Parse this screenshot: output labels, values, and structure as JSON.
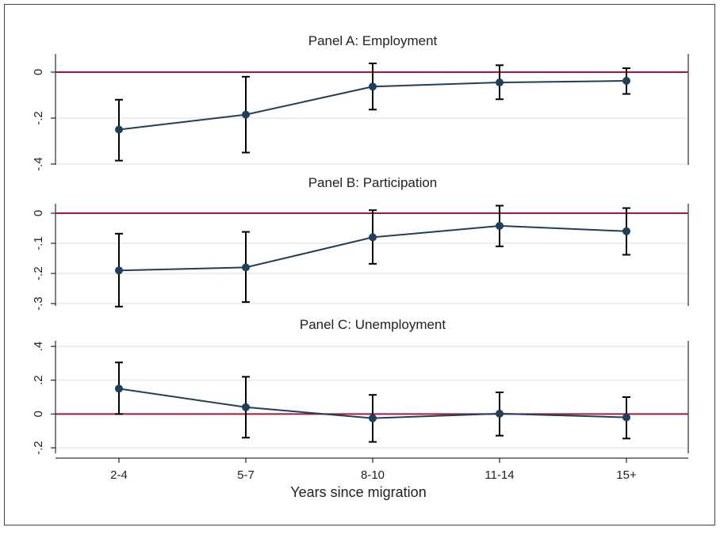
{
  "chart_data": {
    "type": "line",
    "xlabel": "Years since migration",
    "categories": [
      "2-4",
      "5-7",
      "8-10",
      "11-14",
      "15+"
    ],
    "reference_line": 0,
    "colors": {
      "series": "#1f3f5a",
      "errorbar": "#000000",
      "reference": "#a01c3c",
      "grid": "#e3ebea"
    },
    "panels": [
      {
        "title": "Panel A: Employment",
        "ylim": [
          -0.4,
          0.05
        ],
        "yticks": [
          0,
          -0.2,
          -0.4
        ],
        "ytick_labels": [
          "0",
          "-.2",
          "-.4"
        ],
        "values": [
          -0.25,
          -0.185,
          -0.063,
          -0.045,
          -0.038
        ],
        "ci_low": [
          -0.385,
          -0.35,
          -0.163,
          -0.118,
          -0.095
        ],
        "ci_high": [
          -0.12,
          -0.02,
          0.038,
          0.03,
          0.017
        ]
      },
      {
        "title": "Panel B: Participation",
        "ylim": [
          -0.31,
          0.02
        ],
        "yticks": [
          0,
          -0.1,
          -0.2,
          -0.3
        ],
        "ytick_labels": [
          "0",
          "-.1",
          "-.2",
          "-.3"
        ],
        "values": [
          -0.19,
          -0.18,
          -0.08,
          -0.042,
          -0.06
        ],
        "ci_low": [
          -0.31,
          -0.295,
          -0.168,
          -0.11,
          -0.138
        ],
        "ci_high": [
          -0.068,
          -0.062,
          0.01,
          0.025,
          0.017
        ]
      },
      {
        "title": "Panel C: Unemployment",
        "ylim": [
          -0.25,
          0.42
        ],
        "yticks": [
          0.4,
          0.2,
          0,
          -0.2
        ],
        "ytick_labels": [
          ".4",
          ".2",
          "0",
          "-.2"
        ],
        "values": [
          0.15,
          0.04,
          -0.025,
          0.002,
          -0.02
        ],
        "ci_low": [
          0,
          -0.14,
          -0.165,
          -0.128,
          -0.145
        ],
        "ci_high": [
          0.305,
          0.22,
          0.113,
          0.128,
          0.1
        ]
      }
    ]
  }
}
